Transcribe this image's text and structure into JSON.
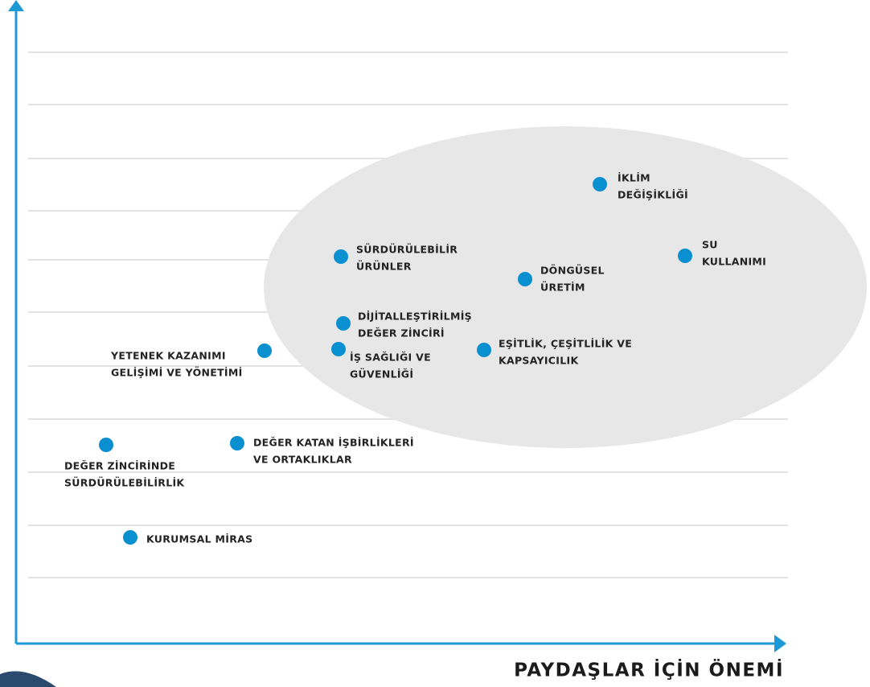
{
  "nodes": [
    {
      "lines": [
        "İKLİM",
        "DEĞİŞİKLİĞİ"
      ]
    },
    {
      "lines": [
        "SU",
        "KULLANIMI"
      ]
    },
    {
      "lines": [
        "SÜRDÜRÜLEBİLİR",
        "ÜRÜNLER"
      ]
    },
    {
      "lines": [
        "DÖNGÜSEL",
        "ÜRETİM"
      ]
    },
    {
      "lines": [
        "DİJİTALLEŞTİRİLMİŞ",
        "DEĞER ZİNCİRİ"
      ]
    },
    {
      "lines": [
        "İŞ SAĞLIĞI VE",
        "GÜVENLİĞİ"
      ]
    },
    {
      "lines": [
        "EŞİTLİK, ÇEŞİTLİLİK VE",
        "KAPSAYICILIK"
      ]
    },
    {
      "lines": [
        "YETENEK KAZANIMI",
        "GELİŞİMİ VE YÖNETİMİ"
      ]
    },
    {
      "lines": [
        "DEĞER KATAN İŞBİRLİKLERİ",
        "VE ORTAKLIKLAR"
      ]
    },
    {
      "lines": [
        "DEĞER ZİNCİRİNDE",
        "SÜRDÜRÜLEBİLİRLİK"
      ]
    },
    {
      "lines": [
        "KURUMSAL MİRAS"
      ]
    }
  ],
  "x_axis_label": "PAYDAŞLAR İÇİN ÖNEMİ"
}
